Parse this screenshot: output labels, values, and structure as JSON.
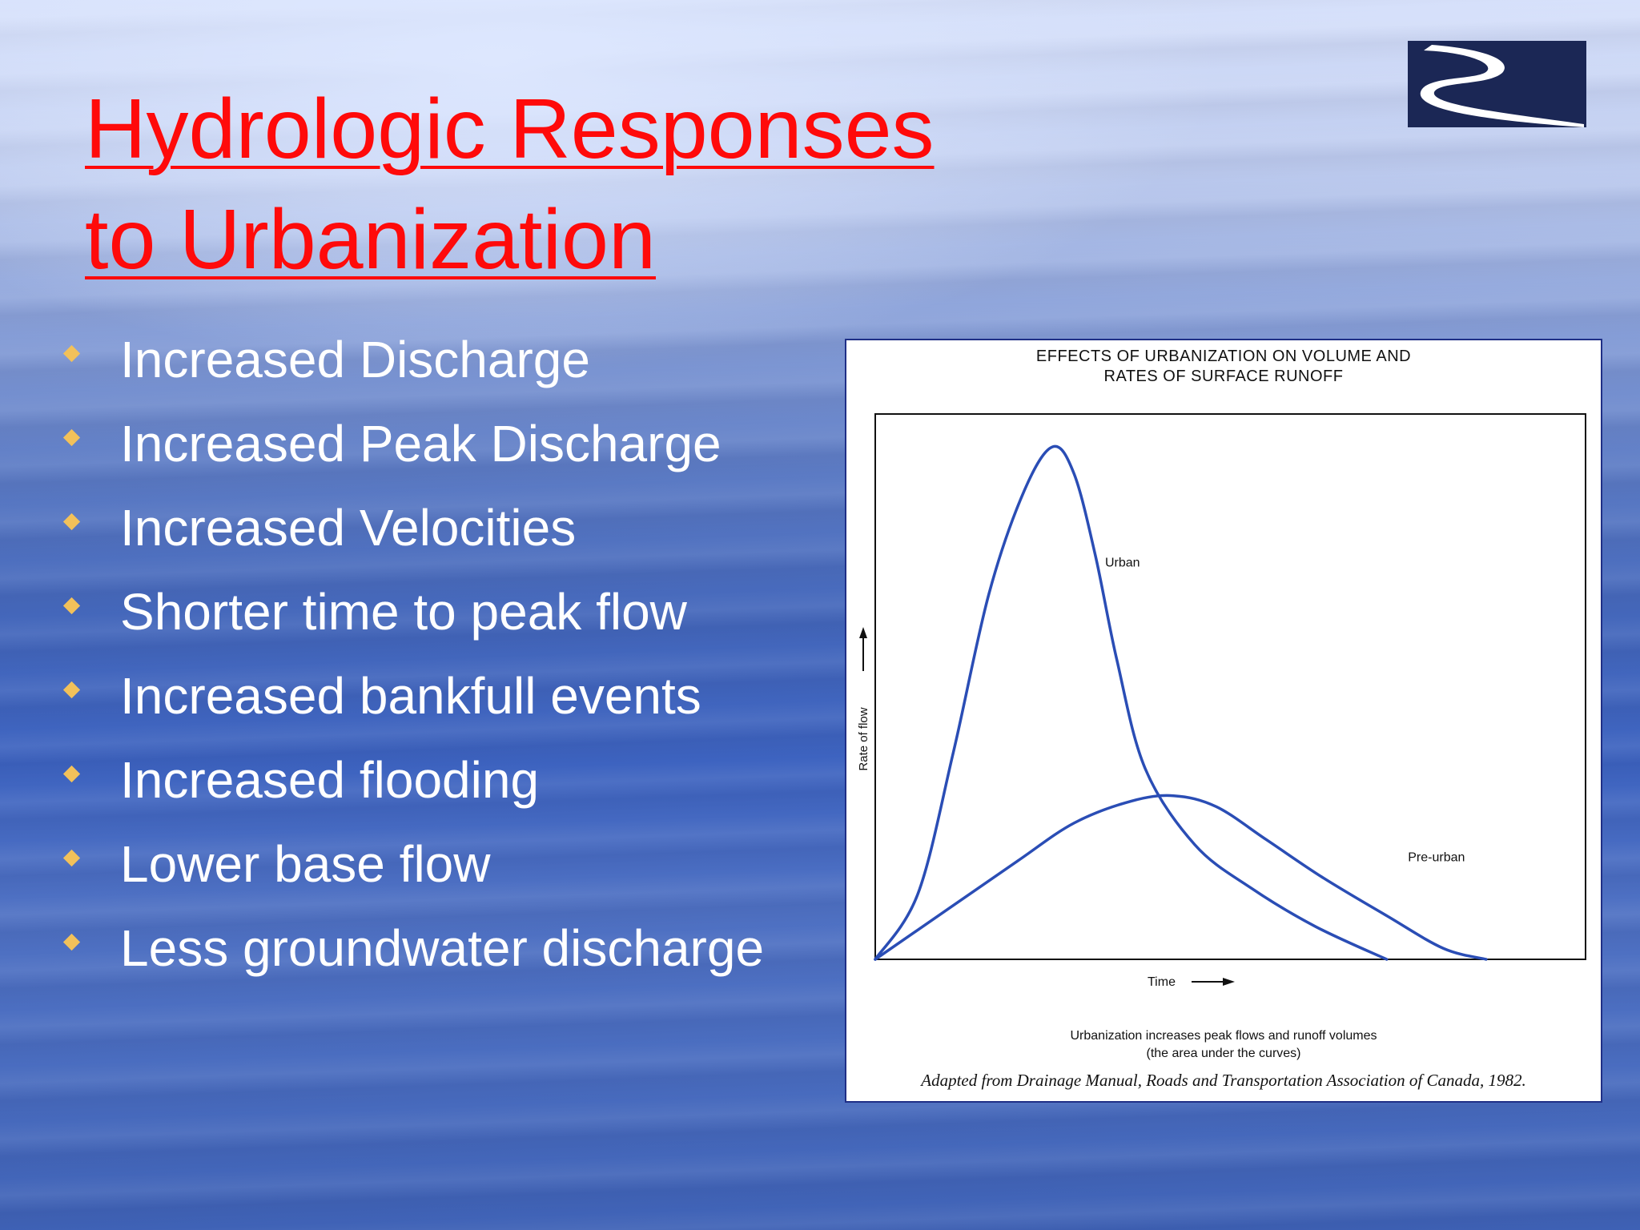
{
  "slide": {
    "title_line1": "Hydrologic Responses",
    "title_line2": "to Urbanization",
    "bullets": [
      "Increased Discharge",
      "Increased Peak Discharge",
      "Increased Velocities",
      "Shorter time to peak flow",
      "Increased bankfull events",
      "Increased flooding",
      "Lower base flow",
      "Less groundwater discharge"
    ],
    "colors": {
      "title": "#ff0a0a",
      "bullet_marker": "#f2c15a",
      "bullet_text": "#ffffff",
      "logo_bg": "#1b2755"
    }
  },
  "chart_data": {
    "type": "line",
    "title_line1": "EFFECTS OF URBANIZATION ON VOLUME AND",
    "title_line2": "RATES OF SURFACE RUNOFF",
    "xlabel": "Time",
    "ylabel": "Rate of flow",
    "xlim": [
      0,
      100
    ],
    "ylim": [
      0,
      100
    ],
    "grid": false,
    "series": [
      {
        "name": "Urban",
        "color": "#2a4db5",
        "points": [
          [
            0,
            0
          ],
          [
            6,
            12
          ],
          [
            11,
            38
          ],
          [
            16,
            67
          ],
          [
            21,
            86
          ],
          [
            25,
            94
          ],
          [
            28,
            89
          ],
          [
            31,
            74
          ],
          [
            34,
            55
          ],
          [
            38,
            35
          ],
          [
            45,
            21
          ],
          [
            53,
            13
          ],
          [
            62,
            6
          ],
          [
            72,
            0
          ]
        ]
      },
      {
        "name": "Pre-urban",
        "color": "#2a4db5",
        "points": [
          [
            0,
            0
          ],
          [
            10,
            9
          ],
          [
            20,
            18
          ],
          [
            28,
            25
          ],
          [
            36,
            29
          ],
          [
            42,
            30
          ],
          [
            48,
            28
          ],
          [
            55,
            22
          ],
          [
            63,
            15
          ],
          [
            72,
            8
          ],
          [
            80,
            2
          ],
          [
            86,
            0
          ]
        ]
      }
    ],
    "caption_line1": "Urbanization increases peak flows and runoff volumes",
    "caption_line2": "(the area under the curves)",
    "credit": "Adapted from Drainage Manual, Roads and Transportation Association of Canada, 1982."
  }
}
